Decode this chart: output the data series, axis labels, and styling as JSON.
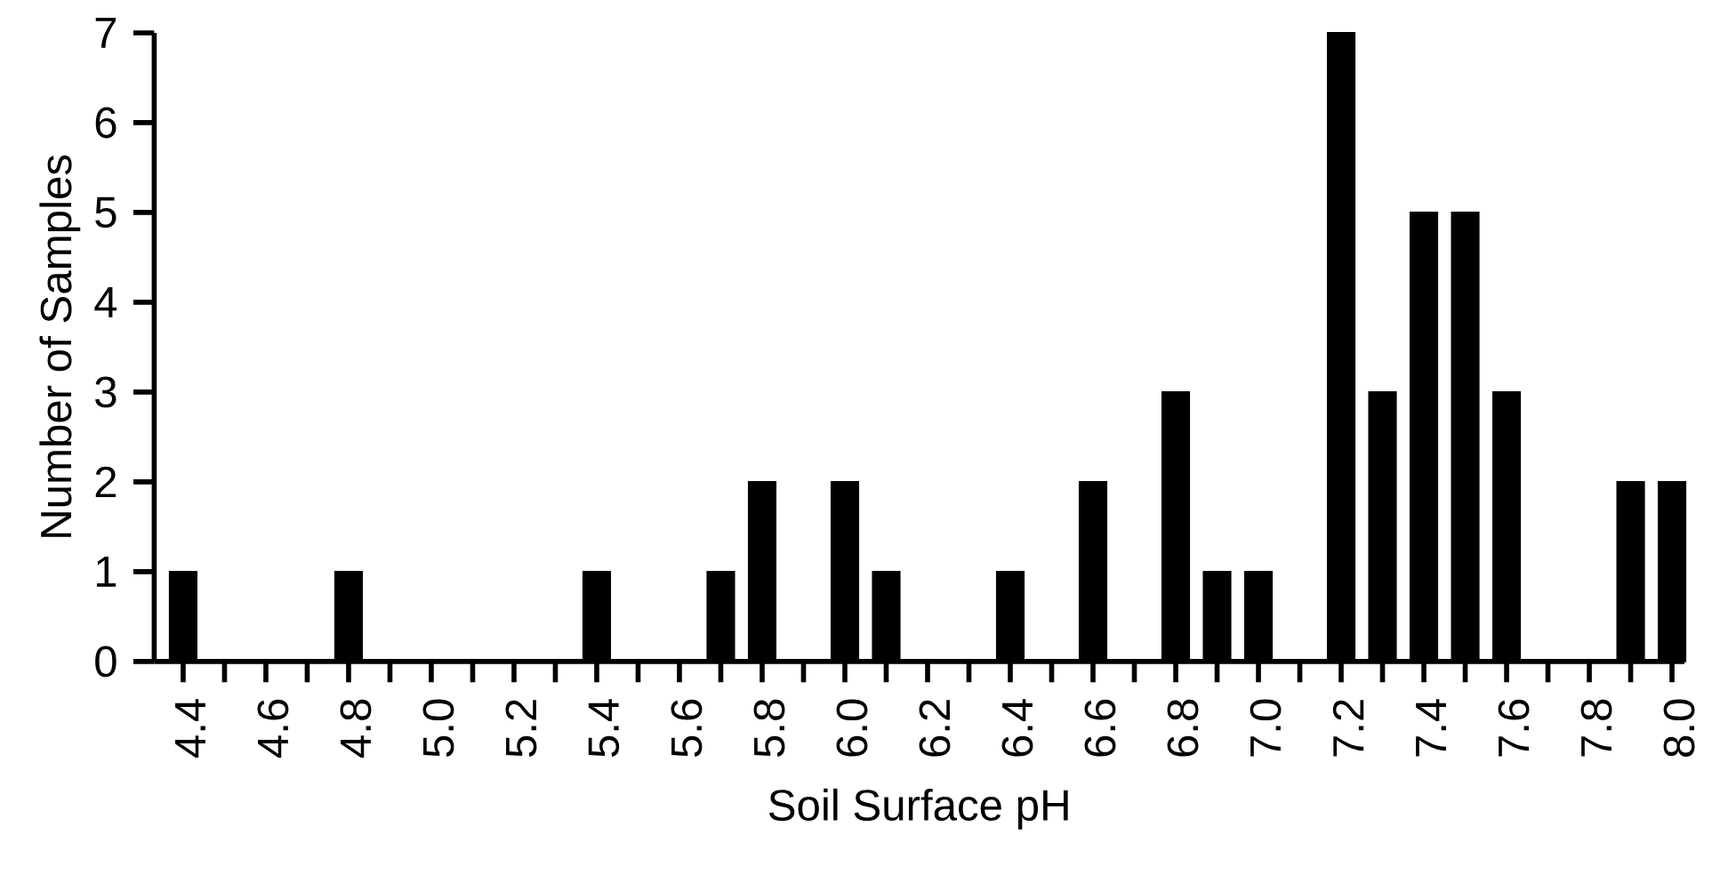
{
  "chart_data": {
    "type": "bar",
    "xlabel": "Soil Surface pH",
    "ylabel": "Number of Samples",
    "x": [
      4.4,
      4.8,
      5.4,
      5.7,
      5.8,
      6.0,
      6.1,
      6.4,
      6.6,
      6.8,
      6.9,
      7.0,
      7.2,
      7.3,
      7.4,
      7.5,
      7.6,
      7.9,
      8.0
    ],
    "values": [
      1,
      1,
      1,
      1,
      2,
      2,
      1,
      1,
      2,
      3,
      1,
      1,
      7,
      3,
      5,
      5,
      3,
      2,
      2
    ],
    "color": "#000000",
    "xlim": [
      4.33,
      8.03
    ],
    "ylim": [
      0,
      7
    ],
    "xticks": [
      4.4,
      {
        "value": 4.5,
        "label": null
      },
      4.6,
      {
        "value": 4.7,
        "label": null
      },
      4.8,
      {
        "value": 4.9,
        "label": null
      },
      {
        "value": 5.0,
        "label": "5.0"
      },
      {
        "value": 5.1,
        "label": null
      },
      5.2,
      {
        "value": 5.3,
        "label": null
      },
      5.4,
      {
        "value": 5.5,
        "label": null
      },
      5.6,
      {
        "value": 5.7,
        "label": null
      },
      5.8,
      {
        "value": 5.9,
        "label": null
      },
      {
        "value": 6.0,
        "label": "6.0"
      },
      {
        "value": 6.1,
        "label": null
      },
      6.2,
      {
        "value": 6.3,
        "label": null
      },
      6.4,
      {
        "value": 6.5,
        "label": null
      },
      6.6,
      {
        "value": 6.7,
        "label": null
      },
      6.8,
      {
        "value": 6.9,
        "label": null
      },
      {
        "value": 7.0,
        "label": "7.0"
      },
      {
        "value": 7.1,
        "label": null
      },
      7.2,
      {
        "value": 7.3,
        "label": null
      },
      7.4,
      {
        "value": 7.5,
        "label": null
      },
      7.6,
      {
        "value": 7.7,
        "label": null
      },
      7.8,
      {
        "value": 7.9,
        "label": null
      },
      {
        "value": 8.0,
        "label": "8.0"
      }
    ],
    "yticks": [
      0,
      1,
      2,
      3,
      4,
      5,
      6,
      7
    ],
    "grid": false
  }
}
